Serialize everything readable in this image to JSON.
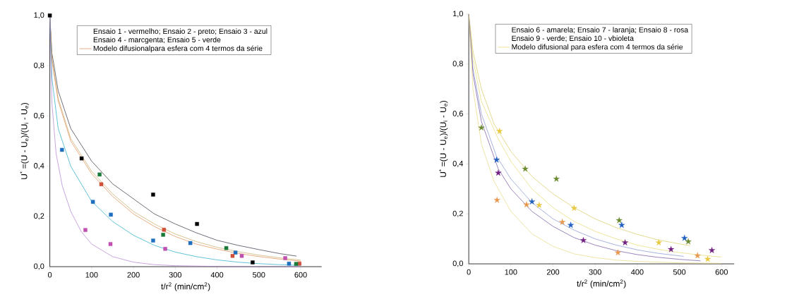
{
  "chart_data": [
    {
      "type": "scatter",
      "xlabel": "t/r$^{2}$ (min/cm$^{2}$)",
      "ylabel": "U$^{*}$ =(U - U$_{e}$)/(U$_{i}$ - U$_{e}$)",
      "annotations": [
        "Ensaio 1 - vermelho; Ensaio 2 - preto; Ensaio 3 - azul",
        "Ensaio 4 - marcgenta; Ensaio 5 - verde"
      ],
      "legend": "top",
      "xlim": [
        0,
        650
      ],
      "xticks": [
        0,
        100,
        200,
        300,
        400,
        500,
        600
      ],
      "ylim": [
        0,
        1
      ],
      "yticks": [
        {
          "value": 0,
          "label": "0,0"
        },
        {
          "value": 0.2,
          "label": "0,2"
        },
        {
          "value": 0.4,
          "label": "0,4"
        },
        {
          "value": 0.6,
          "label": "0,6"
        },
        {
          "value": 0.8,
          "label": "0,8"
        },
        {
          "value": 1,
          "label": "1,0"
        }
      ],
      "series": [
        {
          "type": "line",
          "color": "#303040",
          "marker": "none",
          "x": [
            0,
            5,
            20,
            50,
            100,
            150,
            200,
            250,
            300,
            350,
            400,
            450,
            500,
            550,
            590
          ],
          "values": [
            1,
            0.85,
            0.7,
            0.55,
            0.42,
            0.33,
            0.27,
            0.21,
            0.17,
            0.135,
            0.105,
            0.085,
            0.068,
            0.052,
            0.042
          ]
        },
        {
          "type": "line",
          "color": "#c8a860",
          "marker": "none",
          "x": [
            0,
            5,
            20,
            50,
            100,
            150,
            200,
            250,
            300,
            350,
            400,
            450,
            500,
            550,
            600
          ],
          "values": [
            1,
            0.83,
            0.67,
            0.51,
            0.38,
            0.29,
            0.22,
            0.17,
            0.13,
            0.1,
            0.077,
            0.06,
            0.046,
            0.035,
            0.026
          ]
        },
        {
          "type": "line",
          "name": "Modelo difusionalpara esfera  com 4 termos da série",
          "color": "#e08a50",
          "marker": "none",
          "x": [
            0,
            5,
            20,
            50,
            100,
            150,
            200,
            250,
            300,
            350,
            400,
            450,
            500,
            550,
            600
          ],
          "values": [
            1,
            0.82,
            0.66,
            0.5,
            0.37,
            0.28,
            0.21,
            0.16,
            0.12,
            0.09,
            0.07,
            0.053,
            0.04,
            0.03,
            0.022
          ]
        },
        {
          "type": "line",
          "color": "#20a8c8",
          "marker": "none",
          "x": [
            0,
            5,
            20,
            50,
            100,
            150,
            200,
            250,
            300,
            350,
            400,
            450,
            500,
            550,
            600
          ],
          "values": [
            1,
            0.75,
            0.55,
            0.4,
            0.26,
            0.18,
            0.125,
            0.085,
            0.058,
            0.04,
            0.027,
            0.018,
            0.012,
            0.008,
            0.005
          ]
        },
        {
          "type": "line",
          "color": "#b080d0",
          "marker": "none",
          "x": [
            0,
            5,
            15,
            30,
            50,
            75,
            100,
            150,
            200,
            250,
            300,
            400,
            500,
            600
          ],
          "values": [
            1,
            0.65,
            0.45,
            0.32,
            0.22,
            0.14,
            0.09,
            0.04,
            0.018,
            0.008,
            0.004,
            0.001,
            0,
            0
          ]
        },
        {
          "color": "#1f6fc0",
          "marker": "square",
          "x": [
            29,
            103,
            146,
            247,
            336,
            444,
            572
          ],
          "values": [
            0.465,
            0.258,
            0.207,
            0.104,
            0.094,
            0.056,
            0.012
          ]
        },
        {
          "color": "#000000",
          "marker": "square",
          "x": [
            0,
            76,
            247,
            352,
            485
          ],
          "values": [
            1.0,
            0.431,
            0.287,
            0.17,
            0.017
          ]
        },
        {
          "color": "#d0503a",
          "marker": "square",
          "x": [
            123,
            273,
            437,
            597
          ],
          "values": [
            0.328,
            0.147,
            0.043,
            0.012
          ]
        },
        {
          "color": "#1a7a3a",
          "marker": "square",
          "x": [
            119,
            271,
            422,
            589
          ],
          "values": [
            0.367,
            0.127,
            0.074,
            0.011
          ]
        },
        {
          "color": "#c050b0",
          "marker": "square",
          "x": [
            85,
            145,
            276,
            459,
            563
          ],
          "values": [
            0.146,
            0.09,
            0.071,
            0.043,
            0.034
          ]
        }
      ]
    },
    {
      "type": "scatter",
      "xlabel": "t/r$^{2}$ (min/cm$^{2}$)",
      "ylabel": "U$^{*}$ =(U - U$_{e}$)/(U$_{i}$ - U$_{e}$)",
      "annotations": [
        "Ensaio 6 - amarela; Ensaio 7 - laranja; Ensaio 8 - rosa",
        "Ensaio 9 - verde; Ensaio 10 - vbioleta"
      ],
      "legend": "top",
      "xlim": [
        0,
        630
      ],
      "xticks": [
        0,
        100,
        200,
        300,
        400,
        500,
        600
      ],
      "ylim": [
        0,
        1
      ],
      "yticks": [
        {
          "value": 0,
          "label": "0,0"
        },
        {
          "value": 0.2,
          "label": "0,2"
        },
        {
          "value": 0.4,
          "label": "0,4"
        },
        {
          "value": 0.6,
          "label": "0,6"
        },
        {
          "value": 0.8,
          "label": "0,8"
        },
        {
          "value": 1,
          "label": "1,0"
        }
      ],
      "series": [
        {
          "type": "line",
          "color": "#d8c860",
          "marker": "none",
          "x": [
            0,
            10,
            30,
            60,
            100,
            150,
            200,
            250,
            300,
            350,
            400,
            450,
            500,
            525
          ],
          "values": [
            1,
            0.85,
            0.7,
            0.56,
            0.45,
            0.35,
            0.28,
            0.225,
            0.18,
            0.145,
            0.118,
            0.096,
            0.08,
            0.073
          ]
        },
        {
          "type": "line",
          "name": "Modelo difusional para esfera com 4 termos da série",
          "color": "#e8d870",
          "marker": "none",
          "x": [
            0,
            10,
            30,
            70,
            100,
            150,
            200,
            250,
            300,
            350,
            400,
            450,
            500,
            550,
            600
          ],
          "values": [
            1,
            0.82,
            0.65,
            0.5,
            0.41,
            0.3,
            0.225,
            0.17,
            0.13,
            0.1,
            0.075,
            0.058,
            0.045,
            0.035,
            0.027
          ]
        },
        {
          "type": "line",
          "color": "#8090d0",
          "marker": "none",
          "x": [
            0,
            10,
            30,
            66,
            100,
            150,
            200,
            250,
            300,
            350,
            400,
            450,
            510
          ],
          "values": [
            1,
            0.78,
            0.6,
            0.43,
            0.34,
            0.245,
            0.18,
            0.135,
            0.1,
            0.075,
            0.056,
            0.042,
            0.03
          ]
        },
        {
          "type": "line",
          "color": "#7050a0",
          "marker": "none",
          "x": [
            0,
            10,
            30,
            70,
            100,
            150,
            200,
            250,
            300,
            350,
            400,
            450,
            500,
            550
          ],
          "values": [
            1,
            0.76,
            0.57,
            0.38,
            0.3,
            0.21,
            0.15,
            0.105,
            0.075,
            0.053,
            0.037,
            0.026,
            0.018,
            0.012
          ]
        },
        {
          "type": "line",
          "color": "#e8d880",
          "marker": "none",
          "x": [
            0,
            10,
            30,
            60,
            100,
            150,
            200,
            250,
            300,
            350,
            400,
            500,
            600
          ],
          "values": [
            1,
            0.7,
            0.48,
            0.33,
            0.21,
            0.12,
            0.07,
            0.04,
            0.025,
            0.015,
            0.01,
            0.004,
            0.002
          ]
        },
        {
          "color": "#6b8a30",
          "marker": "star",
          "x": [
            30,
            134,
            208,
            357,
            521
          ],
          "values": [
            0.545,
            0.38,
            0.34,
            0.174,
            0.089
          ]
        },
        {
          "color": "#e8c840",
          "marker": "star",
          "x": [
            73,
            167,
            250,
            451,
            567
          ],
          "values": [
            0.531,
            0.235,
            0.223,
            0.085,
            0.019
          ]
        },
        {
          "color": "#e89850",
          "marker": "star",
          "x": [
            67,
            137,
            222,
            354,
            543
          ],
          "values": [
            0.255,
            0.237,
            0.167,
            0.045,
            0.033
          ]
        },
        {
          "color": "#2060c0",
          "marker": "star",
          "x": [
            66,
            150,
            242,
            363,
            512
          ],
          "values": [
            0.416,
            0.249,
            0.155,
            0.155,
            0.103
          ]
        },
        {
          "color": "#702080",
          "marker": "star",
          "x": [
            70,
            272,
            371,
            480,
            577
          ],
          "values": [
            0.364,
            0.094,
            0.085,
            0.058,
            0.054
          ]
        }
      ]
    }
  ]
}
